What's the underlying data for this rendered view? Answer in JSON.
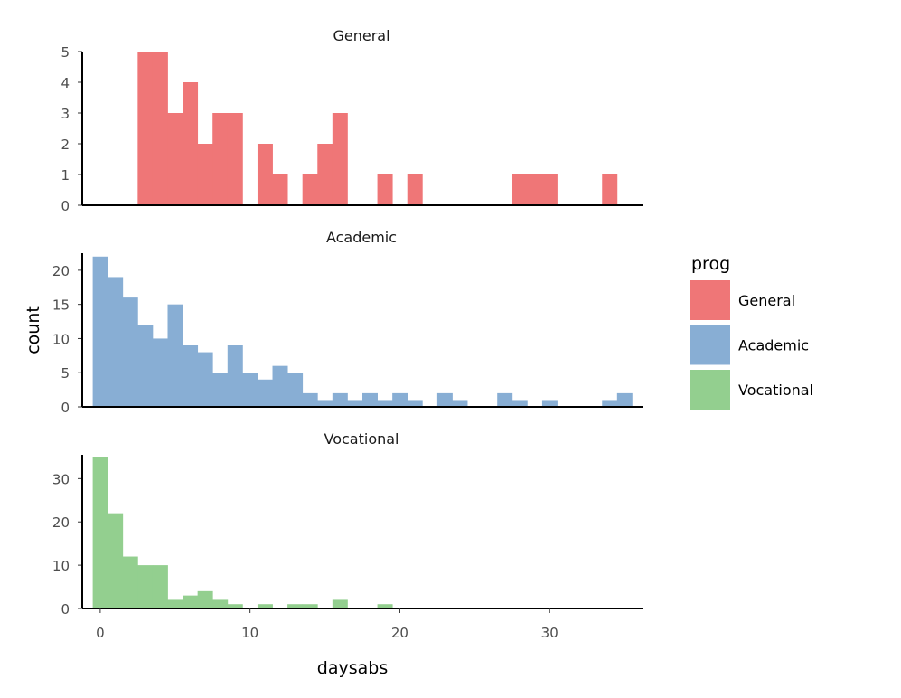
{
  "chart_data": {
    "type": "bar",
    "subtype": "faceted-histogram",
    "xlabel": "daysabs",
    "ylabel": "count",
    "xlim": [
      -1.2,
      36.2
    ],
    "x_ticks": [
      0,
      10,
      20,
      30
    ],
    "bin_width": 1,
    "bin_starts": [
      -0.5,
      0.5,
      1.5,
      2.5,
      3.5,
      4.5,
      5.5,
      6.5,
      7.5,
      8.5,
      9.5,
      10.5,
      11.5,
      12.5,
      13.5,
      14.5,
      15.5,
      16.5,
      17.5,
      18.5,
      19.5,
      20.5,
      21.5,
      22.5,
      23.5,
      24.5,
      25.5,
      26.5,
      27.5,
      28.5,
      29.5,
      30.5,
      31.5,
      32.5,
      33.5,
      34.5
    ],
    "legend": {
      "title": "prog",
      "position": "right",
      "entries": [
        {
          "label": "General",
          "color": "#EF7677"
        },
        {
          "label": "Academic",
          "color": "#88AED4"
        },
        {
          "label": "Vocational",
          "color": "#93CF8F"
        }
      ]
    },
    "series": [
      {
        "name": "General",
        "color": "#EF7677",
        "ylim": [
          0,
          5
        ],
        "y_ticks": [
          0,
          1,
          2,
          3,
          4,
          5
        ],
        "values": [
          0,
          0,
          0,
          5,
          5,
          3,
          4,
          2,
          3,
          3,
          0,
          2,
          1,
          0,
          1,
          2,
          3,
          0,
          0,
          1,
          0,
          1,
          0,
          0,
          0,
          0,
          0,
          0,
          1,
          1,
          1,
          0,
          0,
          0,
          1,
          0
        ]
      },
      {
        "name": "Academic",
        "color": "#88AED4",
        "ylim": [
          0,
          22.5
        ],
        "y_ticks": [
          0,
          5,
          10,
          15,
          20
        ],
        "values": [
          22,
          19,
          16,
          12,
          10,
          15,
          9,
          8,
          5,
          9,
          5,
          4,
          6,
          5,
          2,
          1,
          2,
          1,
          2,
          1,
          2,
          1,
          0,
          2,
          1,
          0,
          0,
          2,
          1,
          0,
          1,
          0,
          0,
          0,
          1,
          2
        ]
      },
      {
        "name": "Vocational",
        "color": "#93CF8F",
        "ylim": [
          0,
          35.5
        ],
        "y_ticks": [
          0,
          10,
          20,
          30
        ],
        "values": [
          35,
          22,
          12,
          10,
          10,
          2,
          3,
          4,
          2,
          1,
          0,
          1,
          0,
          1,
          1,
          0,
          2,
          0,
          0,
          1,
          0,
          0,
          0,
          0,
          0,
          0,
          0,
          0,
          0,
          0,
          0,
          0,
          0,
          0,
          0,
          0
        ]
      }
    ]
  }
}
